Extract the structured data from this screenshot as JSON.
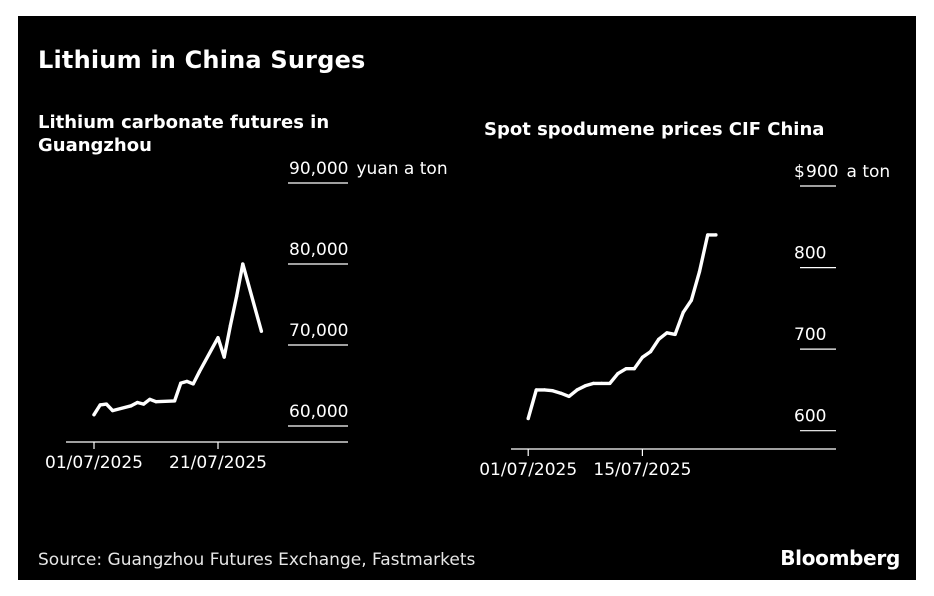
{
  "title": "Lithium in China Surges",
  "source": "Source: Guangzhou Futures Exchange, Fastmarkets",
  "brand": "Bloomberg",
  "colors": {
    "background": "#000000",
    "line": "#ffffff",
    "text": "#ffffff",
    "grid": "#ffffff"
  },
  "chart_data": [
    {
      "type": "line",
      "title": "Lithium carbonate futures in Guangzhou",
      "unit_label": "yuan a ton",
      "ylim": [
        60000,
        90000
      ],
      "yticks": [
        {
          "value": 90000,
          "label": "90,000"
        },
        {
          "value": 80000,
          "label": "80,000"
        },
        {
          "value": 70000,
          "label": "70,000"
        },
        {
          "value": 60000,
          "label": "60,000"
        }
      ],
      "xlim": [
        "2025-07-01",
        "2025-07-31"
      ],
      "xticks": [
        {
          "value": "2025-07-01",
          "label": "01/07/2025"
        },
        {
          "value": "2025-07-21",
          "label": "21/07/2025"
        }
      ],
      "x": [
        "2025-07-01",
        "2025-07-02",
        "2025-07-03",
        "2025-07-04",
        "2025-07-07",
        "2025-07-08",
        "2025-07-09",
        "2025-07-10",
        "2025-07-11",
        "2025-07-14",
        "2025-07-15",
        "2025-07-16",
        "2025-07-17",
        "2025-07-18",
        "2025-07-21",
        "2025-07-22",
        "2025-07-23",
        "2025-07-24",
        "2025-07-25",
        "2025-07-28"
      ],
      "values": [
        61400,
        62600,
        62700,
        61900,
        62500,
        62900,
        62700,
        63300,
        63000,
        63100,
        65300,
        65500,
        65200,
        66700,
        70900,
        68500,
        72400,
        76000,
        80000,
        71700
      ],
      "grid": true
    },
    {
      "type": "line",
      "title": "Spot spodumene prices CIF China",
      "unit_label": "a ton",
      "unit_prefix": "$",
      "ylim": [
        580,
        900
      ],
      "yticks": [
        {
          "value": 900,
          "label": "900"
        },
        {
          "value": 800,
          "label": "800"
        },
        {
          "value": 700,
          "label": "700"
        },
        {
          "value": 600,
          "label": "600"
        }
      ],
      "xlim": [
        "2025-06-30",
        "2025-07-31"
      ],
      "xticks": [
        {
          "value": "2025-07-01",
          "label": "01/07/2025"
        },
        {
          "value": "2025-07-15",
          "label": "15/07/2025"
        }
      ],
      "x": [
        "2025-07-01",
        "2025-07-02",
        "2025-07-03",
        "2025-07-04",
        "2025-07-05",
        "2025-07-06",
        "2025-07-07",
        "2025-07-08",
        "2025-07-09",
        "2025-07-10",
        "2025-07-11",
        "2025-07-12",
        "2025-07-13",
        "2025-07-14",
        "2025-07-15",
        "2025-07-16",
        "2025-07-17",
        "2025-07-18",
        "2025-07-19",
        "2025-07-20",
        "2025-07-21",
        "2025-07-22",
        "2025-07-23",
        "2025-07-24"
      ],
      "values": [
        615,
        650,
        650,
        649,
        646,
        642,
        650,
        655,
        658,
        658,
        658,
        670,
        676,
        676,
        690,
        697,
        712,
        720,
        718,
        745,
        760,
        795,
        840,
        840
      ],
      "grid": true
    }
  ]
}
